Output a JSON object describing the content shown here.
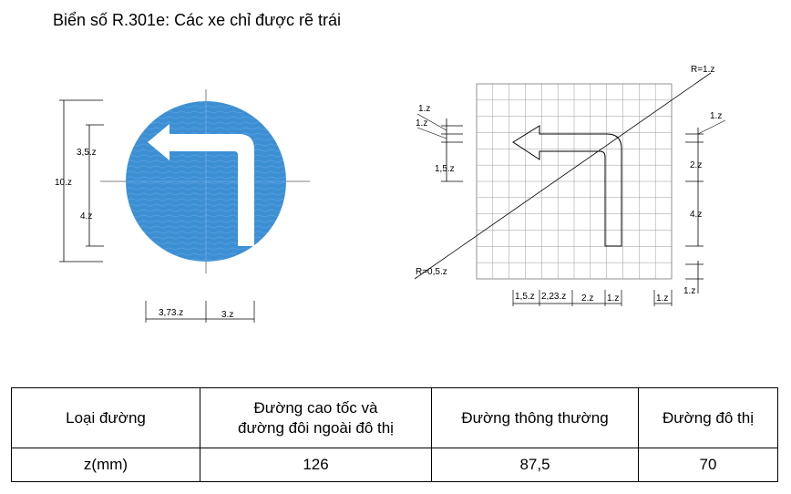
{
  "title": "Biển số R.301e: Các xe chỉ được rẽ trái",
  "colors": {
    "sign_blue": "#3d8fd4",
    "arrow": "#ffffff",
    "line": "#000000",
    "grid": "#9a9a9a"
  },
  "left_sign": {
    "icon": "turn-left-arrow",
    "dims": {
      "total": "10.z",
      "upper": "3,5.z",
      "lower": "4.z",
      "width_left": "3,73.z",
      "width_right": "3.z"
    }
  },
  "right_grid": {
    "radius_outer": "R=1.z",
    "radius_inner": "R=0,5.z",
    "left_dims": [
      "1.z",
      "1.z",
      "1,5.z"
    ],
    "right_dims": [
      "1.z",
      "2.z",
      "4.z",
      "1.z"
    ],
    "bottom_dims": [
      "1,5.z",
      "2,23.z",
      "2.z",
      "1.z",
      "1.z"
    ]
  },
  "table": {
    "header": [
      "Loại đường",
      "Đường cao tốc và\nđường đôi ngoài đô thị",
      "Đường thông thường",
      "Đường đô thị"
    ],
    "row": [
      "z(mm)",
      "126",
      "87,5",
      "70"
    ]
  }
}
